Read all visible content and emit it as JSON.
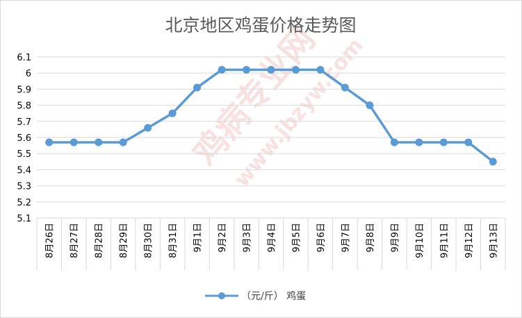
{
  "chart_data": {
    "type": "line",
    "title": "北京地区鸡蛋价格走势图",
    "categories": [
      "8月26日",
      "8月27日",
      "8月28日",
      "8月29日",
      "8月30日",
      "8月31日",
      "9月1日",
      "9月2日",
      "9月3日",
      "9月4日",
      "9月5日",
      "9月6日",
      "9月7日",
      "9月8日",
      "9月9日",
      "9月10日",
      "9月11日",
      "9月12日",
      "9月13日"
    ],
    "series": [
      {
        "name": "（元/斤） 鸡蛋",
        "color": "#5b9bd5",
        "values": [
          5.57,
          5.57,
          5.57,
          5.57,
          5.66,
          5.75,
          5.91,
          6.02,
          6.02,
          6.02,
          6.02,
          6.02,
          5.91,
          5.8,
          5.57,
          5.57,
          5.57,
          5.57,
          5.45
        ]
      }
    ],
    "ylim": [
      5.1,
      6.1
    ],
    "yticks": [
      "5.1",
      "5.2",
      "5.3",
      "5.4",
      "5.5",
      "5.6",
      "5.7",
      "5.8",
      "5.9",
      "6",
      "6.1"
    ],
    "grid": true,
    "legend_position": "bottom",
    "watermark": {
      "text1": "鸡病专业网",
      "text2": "www.jbzyw.com"
    }
  }
}
